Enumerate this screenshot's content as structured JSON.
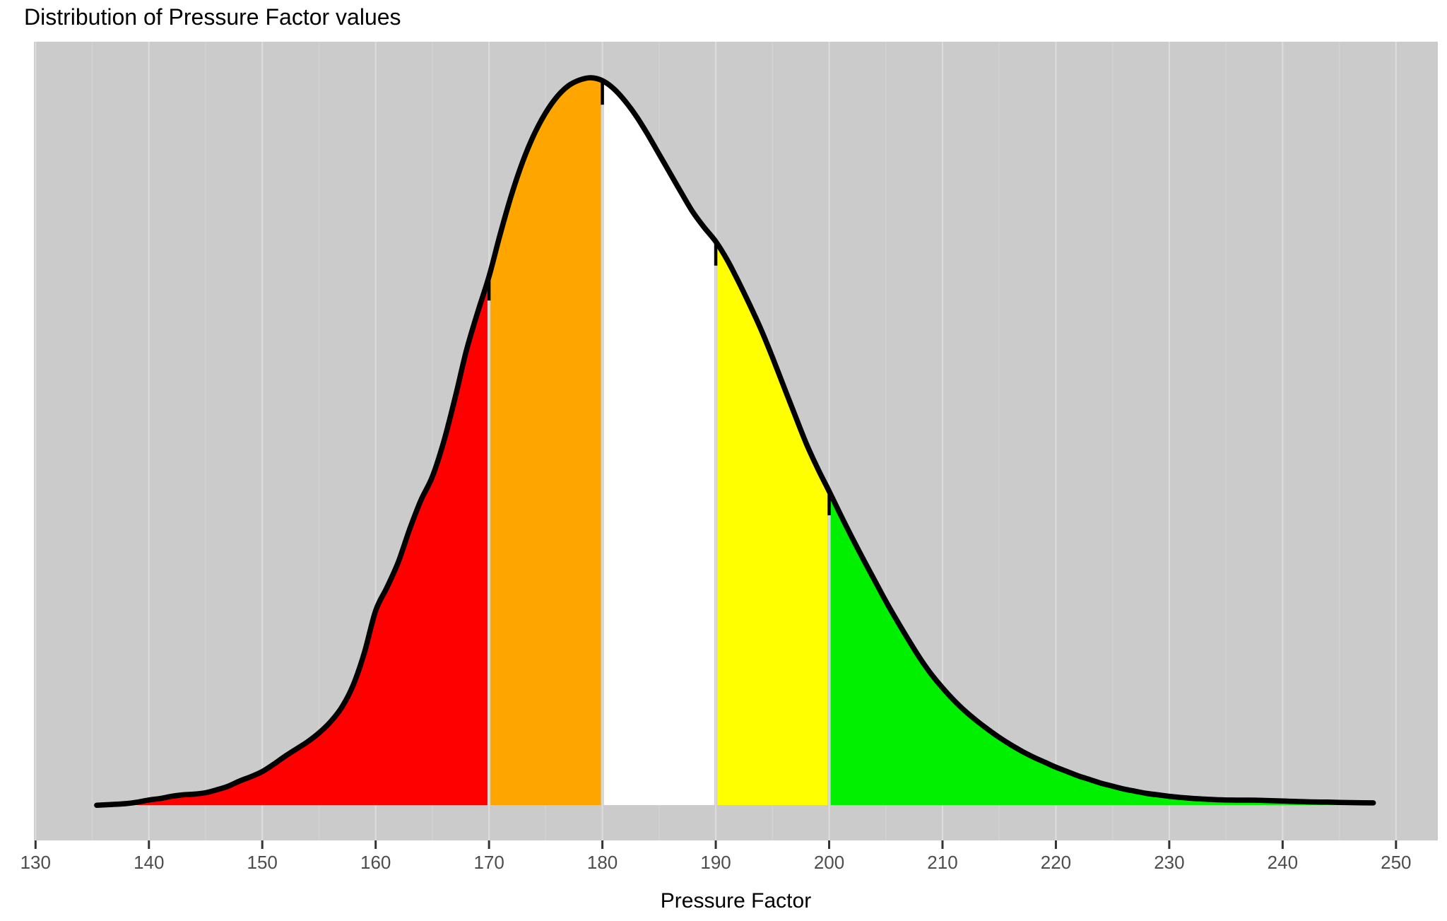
{
  "title": "Distribution of Pressure Factor values",
  "chart_data": {
    "type": "area",
    "subtype": "kernel-density",
    "title": "Distribution of Pressure Factor values",
    "xlabel": "Pressure Factor",
    "ylabel": "",
    "legend": "none",
    "grid": "vertical-only",
    "x_ticks": [
      130,
      140,
      150,
      160,
      170,
      180,
      190,
      200,
      210,
      220,
      230,
      240,
      250
    ],
    "x_minor_step": 5,
    "xlim": [
      129.8,
      253.7
    ],
    "data_x_range": [
      135.4,
      248
    ],
    "peak": {
      "x": 179,
      "density_normalized": 1.0
    },
    "region_boundaries": [
      170,
      180,
      190,
      200
    ],
    "regions": [
      {
        "name": "region-below-170",
        "from": 135.4,
        "to": 170,
        "color": "#FF0000"
      },
      {
        "name": "region-170-180",
        "from": 170,
        "to": 180,
        "color": "#FFA500"
      },
      {
        "name": "region-180-190",
        "from": 180,
        "to": 190,
        "color": "#FFFFFF"
      },
      {
        "name": "region-190-200",
        "from": 190,
        "to": 200,
        "color": "#FFFF00"
      },
      {
        "name": "region-above-200",
        "from": 200,
        "to": 248,
        "color": "#00F000"
      }
    ],
    "density_points": [
      [
        135.4,
        0.0008
      ],
      [
        136,
        0.0012
      ],
      [
        137,
        0.002
      ],
      [
        138,
        0.003
      ],
      [
        139,
        0.005
      ],
      [
        140,
        0.008
      ],
      [
        141,
        0.01
      ],
      [
        142,
        0.013
      ],
      [
        143,
        0.015
      ],
      [
        144,
        0.016
      ],
      [
        145,
        0.018
      ],
      [
        146,
        0.022
      ],
      [
        147,
        0.027
      ],
      [
        148,
        0.034
      ],
      [
        149,
        0.04
      ],
      [
        150,
        0.047
      ],
      [
        151,
        0.057
      ],
      [
        152,
        0.068
      ],
      [
        153,
        0.078
      ],
      [
        154,
        0.088
      ],
      [
        155,
        0.1
      ],
      [
        156,
        0.115
      ],
      [
        157,
        0.135
      ],
      [
        158,
        0.165
      ],
      [
        159,
        0.21
      ],
      [
        160,
        0.268
      ],
      [
        161,
        0.3
      ],
      [
        162,
        0.335
      ],
      [
        163,
        0.38
      ],
      [
        164,
        0.42
      ],
      [
        165,
        0.452
      ],
      [
        166,
        0.5
      ],
      [
        167,
        0.56
      ],
      [
        168,
        0.625
      ],
      [
        169,
        0.678
      ],
      [
        170,
        0.727
      ],
      [
        171,
        0.786
      ],
      [
        172,
        0.84
      ],
      [
        173,
        0.886
      ],
      [
        174,
        0.923
      ],
      [
        175,
        0.952
      ],
      [
        176,
        0.974
      ],
      [
        177,
        0.989
      ],
      [
        178,
        0.997
      ],
      [
        179,
        1.0
      ],
      [
        180,
        0.996
      ],
      [
        181,
        0.985
      ],
      [
        182,
        0.968
      ],
      [
        183,
        0.947
      ],
      [
        184,
        0.922
      ],
      [
        185,
        0.895
      ],
      [
        186,
        0.868
      ],
      [
        187,
        0.841
      ],
      [
        188,
        0.815
      ],
      [
        189,
        0.794
      ],
      [
        190,
        0.775
      ],
      [
        191,
        0.75
      ],
      [
        192,
        0.72
      ],
      [
        193,
        0.688
      ],
      [
        194,
        0.654
      ],
      [
        195,
        0.616
      ],
      [
        196,
        0.576
      ],
      [
        197,
        0.536
      ],
      [
        198,
        0.497
      ],
      [
        199,
        0.463
      ],
      [
        200,
        0.432
      ],
      [
        201,
        0.4
      ],
      [
        202,
        0.369
      ],
      [
        203,
        0.339
      ],
      [
        204,
        0.31
      ],
      [
        205,
        0.281
      ],
      [
        206,
        0.254
      ],
      [
        207,
        0.228
      ],
      [
        208,
        0.203
      ],
      [
        209,
        0.181
      ],
      [
        210,
        0.162
      ],
      [
        211,
        0.145
      ],
      [
        212,
        0.13
      ],
      [
        213,
        0.117
      ],
      [
        214,
        0.105
      ],
      [
        215,
        0.094
      ],
      [
        216,
        0.084
      ],
      [
        217,
        0.075
      ],
      [
        218,
        0.067
      ],
      [
        219,
        0.06
      ],
      [
        220,
        0.053
      ],
      [
        221,
        0.047
      ],
      [
        222,
        0.041
      ],
      [
        223,
        0.036
      ],
      [
        224,
        0.031
      ],
      [
        225,
        0.027
      ],
      [
        226,
        0.023
      ],
      [
        227,
        0.02
      ],
      [
        228,
        0.017
      ],
      [
        229,
        0.015
      ],
      [
        230,
        0.013
      ],
      [
        231,
        0.0115
      ],
      [
        232,
        0.0102
      ],
      [
        233,
        0.0092
      ],
      [
        234,
        0.0085
      ],
      [
        235,
        0.008
      ],
      [
        236,
        0.0078
      ],
      [
        237,
        0.0078
      ],
      [
        238,
        0.0075
      ],
      [
        239,
        0.007
      ],
      [
        240,
        0.0065
      ],
      [
        241,
        0.006
      ],
      [
        242,
        0.0056
      ],
      [
        243,
        0.0052
      ],
      [
        244,
        0.005
      ],
      [
        245,
        0.0047
      ],
      [
        246,
        0.0044
      ],
      [
        247,
        0.0042
      ],
      [
        248,
        0.004
      ]
    ]
  },
  "style": {
    "panel_bg": "#CBCBCB",
    "grid_major": "#DCDCDC",
    "grid_minor": "#D3D3D3",
    "curve_color": "#000000",
    "tick_color": "#333333",
    "tick_label_color": "#4D4D4D",
    "title_color": "#000000"
  }
}
